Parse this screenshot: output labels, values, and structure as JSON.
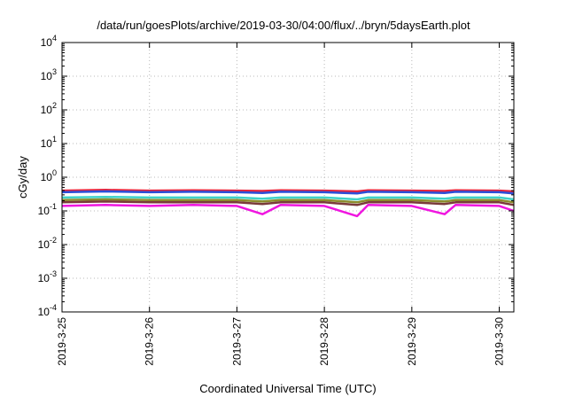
{
  "chart_data": {
    "type": "line",
    "title": "/data/run/goesPlots/archive/2019-03-30/04:00/flux/../bryn/5daysEarth.plot",
    "xlabel": "Coordinated Universal Time (UTC)",
    "ylabel": "cGy/day",
    "yscale": "log",
    "ylim": [
      0.0001,
      10000
    ],
    "xlim": [
      "2019-03-25 00:00",
      "2019-03-30 04:00"
    ],
    "grid": true,
    "legend": "none",
    "y_ticks": [
      {
        "base": "10",
        "exp": "4"
      },
      {
        "base": "10",
        "exp": "3"
      },
      {
        "base": "10",
        "exp": "2"
      },
      {
        "base": "10",
        "exp": "1"
      },
      {
        "base": "10",
        "exp": "0"
      },
      {
        "base": "10",
        "exp": "-1"
      },
      {
        "base": "10",
        "exp": "-2"
      },
      {
        "base": "10",
        "exp": "-3"
      },
      {
        "base": "10",
        "exp": "-4"
      }
    ],
    "x_ticks": [
      "2019-3-25",
      "2019-3-26",
      "2019-3-27",
      "2019-3-28",
      "2019-3-29",
      "2019-3-30"
    ],
    "x": [
      "2019-03-25 00:00",
      "2019-03-25 12:00",
      "2019-03-26 00:00",
      "2019-03-26 12:00",
      "2019-03-27 00:00",
      "2019-03-27 07:00",
      "2019-03-27 12:00",
      "2019-03-28 00:00",
      "2019-03-28 09:00",
      "2019-03-28 12:00",
      "2019-03-29 00:00",
      "2019-03-29 09:00",
      "2019-03-29 12:00",
      "2019-03-30 00:00",
      "2019-03-30 04:00"
    ],
    "series": [
      {
        "color": "#e8253d",
        "values": [
          0.4,
          0.42,
          0.4,
          0.41,
          0.4,
          0.39,
          0.41,
          0.4,
          0.38,
          0.41,
          0.4,
          0.39,
          0.41,
          0.4,
          0.38
        ]
      },
      {
        "color": "#2b4fd8",
        "values": [
          0.36,
          0.38,
          0.36,
          0.37,
          0.36,
          0.34,
          0.37,
          0.36,
          0.33,
          0.37,
          0.36,
          0.34,
          0.37,
          0.36,
          0.33
        ]
      },
      {
        "color": "#3fd3c8",
        "values": [
          0.25,
          0.26,
          0.25,
          0.25,
          0.25,
          0.23,
          0.25,
          0.25,
          0.22,
          0.25,
          0.25,
          0.23,
          0.25,
          0.25,
          0.22
        ]
      },
      {
        "color": "#8b8b2c",
        "values": [
          0.21,
          0.22,
          0.21,
          0.21,
          0.21,
          0.19,
          0.21,
          0.21,
          0.18,
          0.21,
          0.21,
          0.19,
          0.21,
          0.21,
          0.18
        ]
      },
      {
        "color": "#7a3a3a",
        "values": [
          0.18,
          0.19,
          0.18,
          0.18,
          0.18,
          0.16,
          0.18,
          0.18,
          0.15,
          0.18,
          0.18,
          0.16,
          0.18,
          0.18,
          0.15
        ]
      },
      {
        "color": "#f016e0",
        "values": [
          0.14,
          0.15,
          0.14,
          0.15,
          0.14,
          0.08,
          0.15,
          0.14,
          0.07,
          0.15,
          0.14,
          0.08,
          0.15,
          0.14,
          0.1
        ]
      }
    ]
  }
}
